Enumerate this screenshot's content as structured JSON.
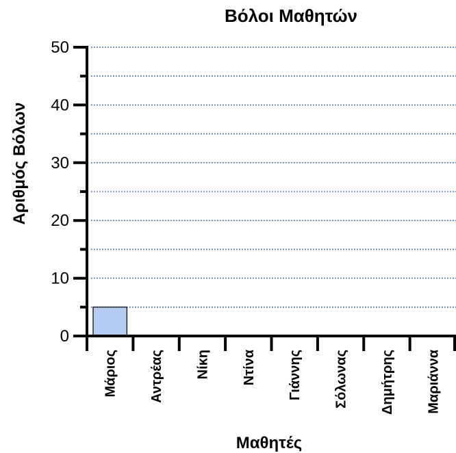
{
  "chart_data": {
    "type": "bar",
    "title": "Βόλοι Μαθητών",
    "xlabel": "Μαθητές",
    "ylabel": "Αριθμός Βόλων",
    "categories": [
      "Μάριος",
      "Αντρέας",
      "Νίκη",
      "Ντίνα",
      "Γιάννης",
      "Σόλωνας",
      "Δημήτρης",
      "Μαριάννα"
    ],
    "values": [
      5,
      null,
      null,
      null,
      null,
      null,
      null,
      null
    ],
    "ylim": [
      0,
      50
    ],
    "yticks": [
      0,
      10,
      20,
      30,
      40,
      50
    ],
    "grid": "dotted horizontal every 5",
    "colors": {
      "bar": "#b4cdf0",
      "bar_stroke": "#000000",
      "grid": "#1f5fa8",
      "axis": "#000000"
    }
  }
}
